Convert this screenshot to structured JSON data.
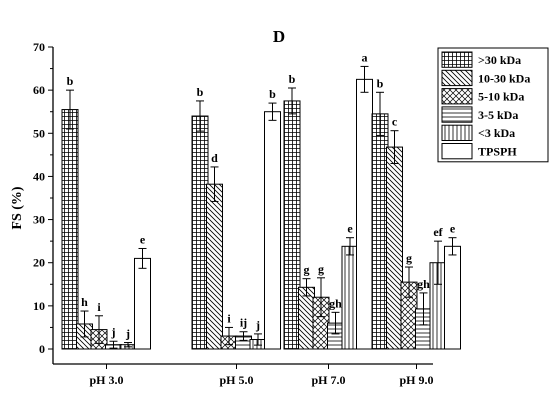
{
  "chart_data": {
    "type": "bar",
    "title": "D",
    "xlabel": "",
    "ylabel": "FS (%)",
    "ylim": [
      0,
      70
    ],
    "yticks": [
      0,
      10,
      20,
      30,
      40,
      50,
      60,
      70
    ],
    "categories": [
      "pH 3.0",
      "pH 5.0",
      "pH 7.0",
      "pH 9.0"
    ],
    "legend_position": "top-right",
    "grid": false,
    "error_bars": true,
    "series": [
      {
        "name": ">30 kDa",
        "pattern": "grid",
        "values": [
          55.5,
          54.0,
          57.5,
          54.5
        ],
        "errors": [
          4.5,
          3.5,
          3.0,
          5.0
        ],
        "labels": [
          "b",
          "b",
          "b",
          "b"
        ]
      },
      {
        "name": "10-30 kDa",
        "pattern": "backslash",
        "values": [
          5.8,
          38.2,
          14.3,
          46.8
        ],
        "errors": [
          3.0,
          4.0,
          2.0,
          3.8
        ],
        "labels": [
          "h",
          "d",
          "g",
          "c"
        ]
      },
      {
        "name": "5-10 kDa",
        "pattern": "crosshatch",
        "values": [
          4.5,
          3.0,
          12.0,
          15.5
        ],
        "errors": [
          3.2,
          2.0,
          4.5,
          3.5
        ],
        "labels": [
          "i",
          "i",
          "g",
          "g"
        ]
      },
      {
        "name": "3-5 kDa",
        "pattern": "horizontal",
        "values": [
          1.0,
          3.0,
          6.0,
          9.3
        ],
        "errors": [
          0.8,
          1.0,
          2.5,
          3.7
        ],
        "labels": [
          "j",
          "ij",
          "gh",
          "gh"
        ]
      },
      {
        "name": "<3 kDa",
        "pattern": "vertical",
        "values": [
          1.0,
          2.2,
          23.8,
          20.0
        ],
        "errors": [
          0.5,
          1.3,
          2.0,
          5.0
        ],
        "labels": [
          "j",
          "j",
          "e",
          "ef"
        ]
      },
      {
        "name": "TPSPH",
        "pattern": "none",
        "values": [
          21.0,
          55.0,
          62.5,
          23.8
        ],
        "errors": [
          2.3,
          2.0,
          3.0,
          2.0
        ],
        "labels": [
          "e",
          "b",
          "a",
          "e"
        ]
      }
    ]
  }
}
